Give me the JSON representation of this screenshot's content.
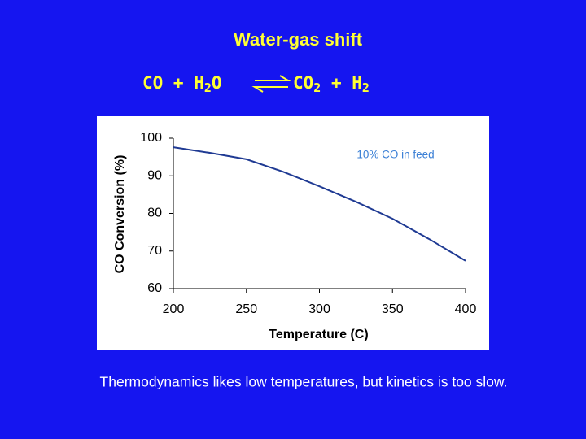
{
  "header": {
    "title": "Water-gas shift"
  },
  "equation": {
    "left": "CO + H",
    "left_sub": "2",
    "left_tail": "O",
    "right": "CO",
    "right_sub": "2",
    "right_mid": " + H",
    "right_sub2": "2"
  },
  "chart_data": {
    "type": "line",
    "x_label": "Temperature (C)",
    "y_label": "CO Conversion (%)",
    "annotation": "10% CO in feed",
    "series": [
      {
        "name": "10% CO in feed",
        "color": "#1f3a93",
        "x": [
          200,
          225,
          250,
          275,
          300,
          325,
          350,
          375,
          400
        ],
        "values": [
          97.6,
          96.1,
          94.4,
          91.1,
          87.2,
          83.1,
          78.6,
          73.2,
          67.4
        ]
      }
    ],
    "xlim": [
      200,
      400
    ],
    "xticks": [
      200,
      250,
      300,
      350,
      400
    ],
    "ylim": [
      60,
      100
    ],
    "yticks": [
      60,
      70,
      80,
      90,
      100
    ],
    "grid": false
  },
  "caption": "Thermodynamics likes low temperatures, but kinetics is too slow."
}
